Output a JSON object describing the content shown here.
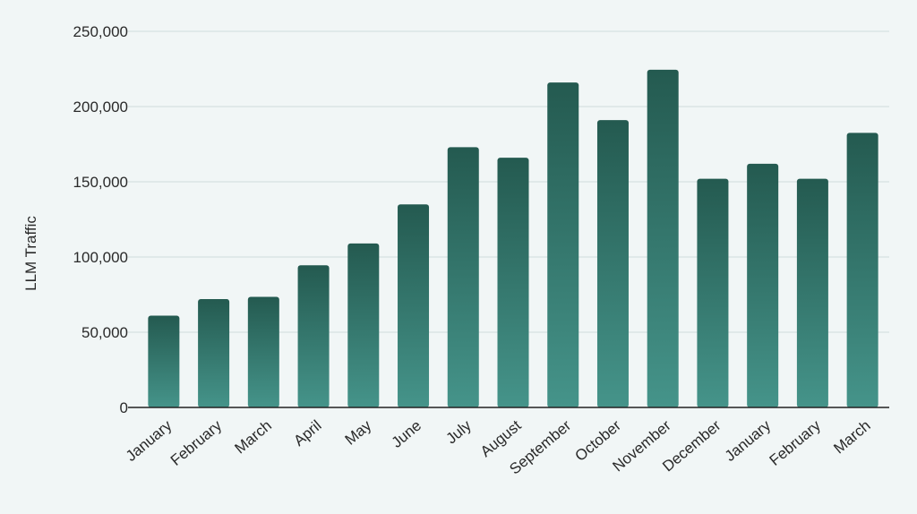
{
  "chart_data": {
    "type": "bar",
    "title": "",
    "xlabel": "",
    "ylabel": "LLM Traffic",
    "ylim": [
      0,
      250000
    ],
    "yticks": [
      "0",
      "50,000",
      "100,000",
      "150,000",
      "200,000",
      "250,000"
    ],
    "ytick_values": [
      0,
      50000,
      100000,
      150000,
      200000,
      250000
    ],
    "grid": true,
    "legend": "none",
    "categories": [
      "January",
      "February",
      "March",
      "April",
      "May",
      "June",
      "July",
      "August",
      "September",
      "October",
      "November",
      "December",
      "January",
      "February",
      "March"
    ],
    "values": [
      61000,
      72000,
      73500,
      94500,
      109000,
      135000,
      173000,
      166000,
      216000,
      191000,
      224500,
      152000,
      162000,
      152000,
      182500
    ],
    "colors": {
      "bar_top": "#245a50",
      "bar_bottom": "#45948a",
      "grid": "#cfdcdc",
      "axis": "#222222",
      "background": "#f1f6f6"
    }
  }
}
